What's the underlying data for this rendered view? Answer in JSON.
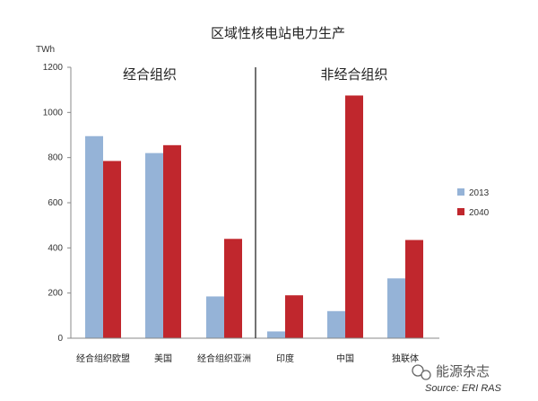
{
  "colors": {
    "s2013": "#95b3d7",
    "s2040": "#c0272d",
    "divider": "#444444",
    "axis": "#888888"
  },
  "watermark": {
    "text": "能源杂志",
    "icon": "wechat-bubble-icon"
  },
  "chart_data": {
    "type": "bar",
    "title": "区域性核电站电力生产",
    "unit_label": "TWh",
    "ylim": [
      0,
      1200
    ],
    "yticks": [
      0,
      200,
      400,
      600,
      800,
      1000,
      1200
    ],
    "groups": [
      {
        "label": "经合组织",
        "categories": [
          "经合组织欧盟",
          "美国",
          "经合组织亚洲"
        ]
      },
      {
        "label": "非经合组织",
        "categories": [
          "印度",
          "中国",
          "独联体"
        ]
      }
    ],
    "categories": [
      "经合组织欧盟",
      "美国",
      "经合组织亚洲",
      "印度",
      "中国",
      "独联体"
    ],
    "series": [
      {
        "name": "2013",
        "values": [
          895,
          820,
          185,
          30,
          120,
          265
        ]
      },
      {
        "name": "2040",
        "values": [
          785,
          855,
          440,
          190,
          1075,
          435
        ]
      }
    ],
    "legend": "right",
    "grid": false,
    "source": "Source: ERI RAS"
  }
}
